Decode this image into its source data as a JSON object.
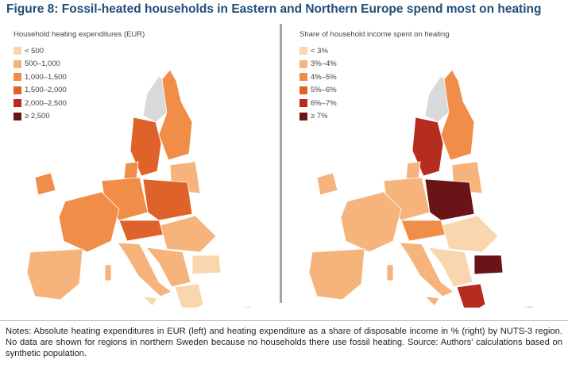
{
  "title": "Figure 8: Fossil-heated households in Eastern and Northern Europe spend most on heating",
  "left_map": {
    "legend_title": "Household heating expenditures (EUR)",
    "legend": [
      {
        "label": "< 500",
        "color": "#f9d6ae"
      },
      {
        "label": "500–1,000",
        "color": "#f6b47c"
      },
      {
        "label": "1,000–1,500",
        "color": "#f08d48"
      },
      {
        "label": "1,500–2,000",
        "color": "#e0622b"
      },
      {
        "label": "2,000–2,500",
        "color": "#b62c1f"
      },
      {
        "label": "≥ 2,500",
        "color": "#6b1418"
      }
    ]
  },
  "right_map": {
    "legend_title": "Share of household income spent on heating",
    "legend": [
      {
        "label": "< 3%",
        "color": "#f9d6ae"
      },
      {
        "label": "3%–4%",
        "color": "#f6b47c"
      },
      {
        "label": "4%–5%",
        "color": "#f08d48"
      },
      {
        "label": "5%–6%",
        "color": "#e0622b"
      },
      {
        "label": "6%–7%",
        "color": "#b62c1f"
      },
      {
        "label": "≥ 7%",
        "color": "#6b1418"
      }
    ]
  },
  "no_data_color": "#d9d9d9",
  "notes": "Notes: Absolute heating expenditures in EUR (left) and heating expenditure as a share of disposable income in % (right) by NUTS-3 region. No data are shown for regions in northern Sweden because no households there use fossil heating. Source: Authors' calculations based on synthetic population."
}
